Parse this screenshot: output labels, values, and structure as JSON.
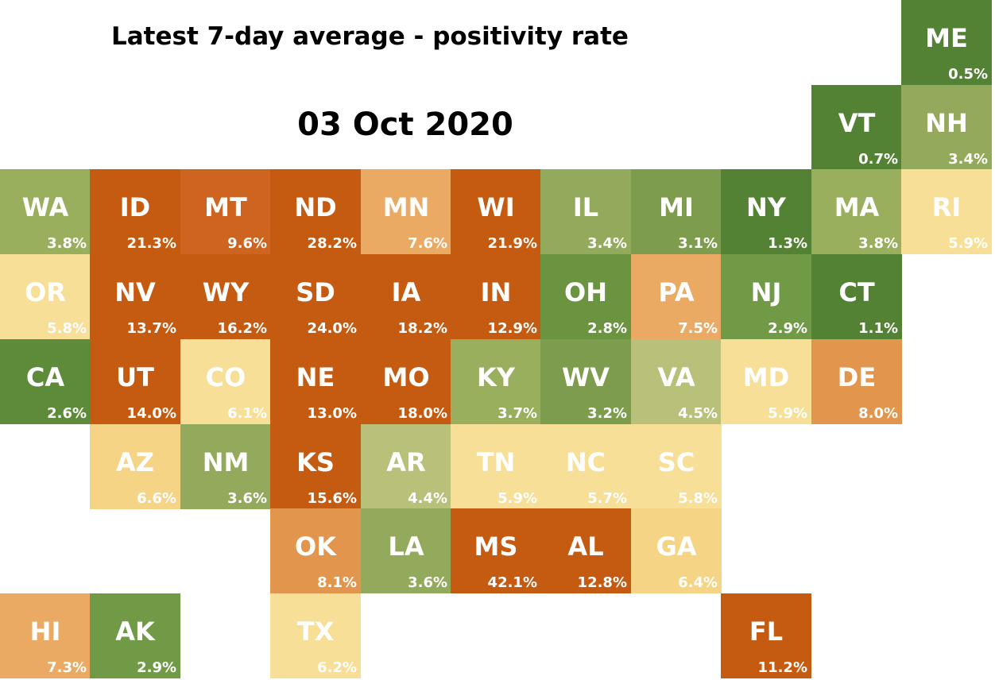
{
  "header": {
    "title": "Latest 7-day average - positivity rate",
    "date": "03 Oct 2020"
  },
  "colors": {
    "dark_green": "#548235",
    "green": "#6f9640",
    "light_green": "#9aaf5e",
    "pale_green": "#b8c07a",
    "pale_yellow": "#f8df97",
    "yellow": "#f4d286",
    "light_orange": "#eaaa64",
    "orange": "#e2954c",
    "dark_orange": "#c55a11",
    "mid_orange": "#cd6420"
  },
  "states": [
    {
      "abbr": "ME",
      "value": "0.5%",
      "row": 0,
      "col": 10,
      "color": "#548235"
    },
    {
      "abbr": "VT",
      "value": "0.7%",
      "row": 1,
      "col": 9,
      "color": "#548235"
    },
    {
      "abbr": "NH",
      "value": "3.4%",
      "row": 1,
      "col": 10,
      "color": "#93a95b"
    },
    {
      "abbr": "WA",
      "value": "3.8%",
      "row": 2,
      "col": 0,
      "color": "#9aaf5e"
    },
    {
      "abbr": "ID",
      "value": "21.3%",
      "row": 2,
      "col": 1,
      "color": "#c55a11"
    },
    {
      "abbr": "MT",
      "value": "9.6%",
      "row": 2,
      "col": 2,
      "color": "#cd6420"
    },
    {
      "abbr": "ND",
      "value": "28.2%",
      "row": 2,
      "col": 3,
      "color": "#c55a11"
    },
    {
      "abbr": "MN",
      "value": "7.6%",
      "row": 2,
      "col": 4,
      "color": "#eaaa64"
    },
    {
      "abbr": "WI",
      "value": "21.9%",
      "row": 2,
      "col": 5,
      "color": "#c55a11"
    },
    {
      "abbr": "IL",
      "value": "3.4%",
      "row": 2,
      "col": 6,
      "color": "#93a95b"
    },
    {
      "abbr": "MI",
      "value": "3.1%",
      "row": 2,
      "col": 7,
      "color": "#7d9c4d"
    },
    {
      "abbr": "NY",
      "value": "1.3%",
      "row": 2,
      "col": 8,
      "color": "#548235"
    },
    {
      "abbr": "MA",
      "value": "3.8%",
      "row": 2,
      "col": 9,
      "color": "#9aaf5e"
    },
    {
      "abbr": "RI",
      "value": "5.9%",
      "row": 2,
      "col": 10,
      "color": "#f8df97"
    },
    {
      "abbr": "OR",
      "value": "5.8%",
      "row": 3,
      "col": 0,
      "color": "#f8df97"
    },
    {
      "abbr": "NV",
      "value": "13.7%",
      "row": 3,
      "col": 1,
      "color": "#c55a11"
    },
    {
      "abbr": "WY",
      "value": "16.2%",
      "row": 3,
      "col": 2,
      "color": "#c55a11"
    },
    {
      "abbr": "SD",
      "value": "24.0%",
      "row": 3,
      "col": 3,
      "color": "#c55a11"
    },
    {
      "abbr": "IA",
      "value": "18.2%",
      "row": 3,
      "col": 4,
      "color": "#c55a11"
    },
    {
      "abbr": "IN",
      "value": "12.9%",
      "row": 3,
      "col": 5,
      "color": "#c55a11"
    },
    {
      "abbr": "OH",
      "value": "2.8%",
      "row": 3,
      "col": 6,
      "color": "#6a943f"
    },
    {
      "abbr": "PA",
      "value": "7.5%",
      "row": 3,
      "col": 7,
      "color": "#eaaa64"
    },
    {
      "abbr": "NJ",
      "value": "2.9%",
      "row": 3,
      "col": 8,
      "color": "#709a45"
    },
    {
      "abbr": "CT",
      "value": "1.1%",
      "row": 3,
      "col": 9,
      "color": "#548235"
    },
    {
      "abbr": "CA",
      "value": "2.6%",
      "row": 4,
      "col": 0,
      "color": "#5d8b3a"
    },
    {
      "abbr": "UT",
      "value": "14.0%",
      "row": 4,
      "col": 1,
      "color": "#c55a11"
    },
    {
      "abbr": "CO",
      "value": "6.1%",
      "row": 4,
      "col": 2,
      "color": "#f8df97"
    },
    {
      "abbr": "NE",
      "value": "13.0%",
      "row": 4,
      "col": 3,
      "color": "#c55a11"
    },
    {
      "abbr": "MO",
      "value": "18.0%",
      "row": 4,
      "col": 4,
      "color": "#c55a11"
    },
    {
      "abbr": "KY",
      "value": "3.7%",
      "row": 4,
      "col": 5,
      "color": "#9aaf5e"
    },
    {
      "abbr": "WV",
      "value": "3.2%",
      "row": 4,
      "col": 6,
      "color": "#7d9c4d"
    },
    {
      "abbr": "VA",
      "value": "4.5%",
      "row": 4,
      "col": 7,
      "color": "#b8c07a"
    },
    {
      "abbr": "MD",
      "value": "5.9%",
      "row": 4,
      "col": 8,
      "color": "#f8df97"
    },
    {
      "abbr": "DE",
      "value": "8.0%",
      "row": 4,
      "col": 9,
      "color": "#e2954c"
    },
    {
      "abbr": "AZ",
      "value": "6.6%",
      "row": 5,
      "col": 1,
      "color": "#f6d486"
    },
    {
      "abbr": "NM",
      "value": "3.6%",
      "row": 5,
      "col": 2,
      "color": "#93a95b"
    },
    {
      "abbr": "KS",
      "value": "15.6%",
      "row": 5,
      "col": 3,
      "color": "#c55a11"
    },
    {
      "abbr": "AR",
      "value": "4.4%",
      "row": 5,
      "col": 4,
      "color": "#b8c07a"
    },
    {
      "abbr": "TN",
      "value": "5.9%",
      "row": 5,
      "col": 5,
      "color": "#f8df97"
    },
    {
      "abbr": "NC",
      "value": "5.7%",
      "row": 5,
      "col": 6,
      "color": "#f8df97"
    },
    {
      "abbr": "SC",
      "value": "5.8%",
      "row": 5,
      "col": 7,
      "color": "#f8df97"
    },
    {
      "abbr": "OK",
      "value": "8.1%",
      "row": 6,
      "col": 3,
      "color": "#e2954c"
    },
    {
      "abbr": "LA",
      "value": "3.6%",
      "row": 6,
      "col": 4,
      "color": "#93a95b"
    },
    {
      "abbr": "MS",
      "value": "42.1%",
      "row": 6,
      "col": 5,
      "color": "#c55a11"
    },
    {
      "abbr": "AL",
      "value": "12.8%",
      "row": 6,
      "col": 6,
      "color": "#c55a11"
    },
    {
      "abbr": "GA",
      "value": "6.4%",
      "row": 6,
      "col": 7,
      "color": "#f6d486"
    },
    {
      "abbr": "HI",
      "value": "7.3%",
      "row": 7,
      "col": 0,
      "color": "#eaaa64"
    },
    {
      "abbr": "AK",
      "value": "2.9%",
      "row": 7,
      "col": 1,
      "color": "#709a45"
    },
    {
      "abbr": "TX",
      "value": "6.2%",
      "row": 7,
      "col": 3,
      "color": "#f8df97"
    },
    {
      "abbr": "FL",
      "value": "11.2%",
      "row": 7,
      "col": 8,
      "color": "#c55a11"
    }
  ]
}
